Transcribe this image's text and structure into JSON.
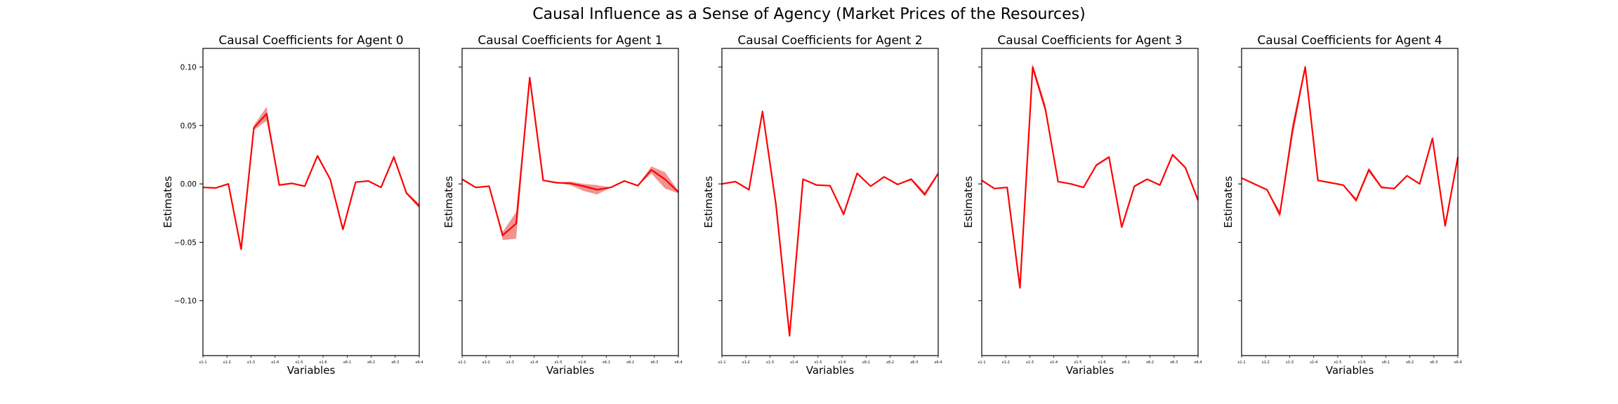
{
  "suptitle": "Causal Influence as a Sense of Agency (Market Prices of the Resources)",
  "colors": {
    "line": "#ff0000",
    "band": "#f08080",
    "axis": "#000000"
  },
  "chart_data": [
    {
      "type": "line",
      "title": "Causal Coefficients for Agent 0",
      "xlabel": "Variables",
      "ylabel": "Estimates",
      "ylim": [
        -0.147,
        0.116
      ],
      "yticks": [
        0.1,
        0.05,
        0.0,
        -0.05,
        -0.1
      ],
      "ytick_labels": [
        "0.10",
        "0.05",
        "0.00",
        "−0.05",
        "−0.10"
      ],
      "x_tick_labels": [
        "x1-1",
        "x1-2",
        "x1-3",
        "x1-4",
        "x1-5",
        "x1-6",
        "x6-1",
        "x6-2",
        "x6-3",
        "x6-4"
      ],
      "series": [
        {
          "values": [
            -0.003,
            -0.0035,
            0.0,
            -0.056,
            0.048,
            0.06,
            -0.001,
            0.0005,
            -0.002,
            0.024,
            0.004,
            -0.039,
            0.0015,
            0.0025,
            -0.003,
            0.023,
            -0.008,
            -0.019
          ],
          "lower": [
            -0.003,
            -0.0035,
            0.0,
            -0.056,
            0.046,
            0.054,
            -0.001,
            0.0005,
            -0.002,
            0.023,
            0.004,
            -0.04,
            0.0015,
            0.0025,
            -0.003,
            0.022,
            -0.009,
            -0.021
          ],
          "upper": [
            -0.003,
            -0.0035,
            0.0,
            -0.054,
            0.05,
            0.066,
            -0.001,
            0.0005,
            -0.002,
            0.025,
            0.004,
            -0.038,
            0.0015,
            0.0025,
            -0.003,
            0.025,
            -0.007,
            -0.017
          ]
        }
      ]
    },
    {
      "type": "line",
      "title": "Causal Coefficients for Agent 1",
      "xlabel": "Variables",
      "ylabel": "Estimates",
      "ylim": [
        -0.147,
        0.116
      ],
      "yticks": [
        0.1,
        0.05,
        0.0,
        -0.05,
        -0.1
      ],
      "ytick_labels": [
        "",
        "",
        "",
        "",
        ""
      ],
      "x_tick_labels": [
        "x1-1",
        "x1-2",
        "x1-3",
        "x1-4",
        "x1-5",
        "x1-6",
        "x6-1",
        "x6-2",
        "x6-3",
        "x6-4"
      ],
      "series": [
        {
          "values": [
            0.004,
            -0.003,
            -0.002,
            -0.044,
            -0.034,
            0.091,
            0.003,
            0.001,
            0.0005,
            -0.002,
            -0.005,
            -0.003,
            0.0025,
            -0.0015,
            0.012,
            0.004,
            -0.007
          ],
          "lower": [
            0.004,
            -0.003,
            -0.002,
            -0.048,
            -0.047,
            0.09,
            0.003,
            0.001,
            -0.001,
            -0.006,
            -0.009,
            -0.003,
            0.0025,
            -0.002,
            0.009,
            -0.004,
            -0.008
          ],
          "upper": [
            0.004,
            -0.003,
            -0.002,
            -0.041,
            -0.024,
            0.092,
            0.003,
            0.001,
            0.002,
            0.0,
            -0.001,
            -0.003,
            0.0025,
            -0.001,
            0.015,
            0.01,
            -0.006
          ]
        }
      ]
    },
    {
      "type": "line",
      "title": "Causal Coefficients for Agent 2",
      "xlabel": "Variables",
      "ylabel": "Estimates",
      "ylim": [
        -0.147,
        0.116
      ],
      "yticks": [
        0.1,
        0.05,
        0.0,
        -0.05,
        -0.1
      ],
      "ytick_labels": [
        "",
        "",
        "",
        "",
        ""
      ],
      "x_tick_labels": [
        "x1-1",
        "x1-2",
        "x1-3",
        "x1-4",
        "x1-5",
        "x1-6",
        "x6-1",
        "x6-2",
        "x6-3",
        "x6-4"
      ],
      "series": [
        {
          "values": [
            0.0,
            0.002,
            -0.005,
            0.062,
            -0.018,
            -0.13,
            0.004,
            -0.001,
            -0.0015,
            -0.026,
            0.009,
            -0.002,
            0.006,
            -0.0005,
            0.004,
            -0.009,
            0.009
          ],
          "lower": [
            0.0,
            0.002,
            -0.005,
            0.06,
            -0.019,
            -0.132,
            0.004,
            -0.001,
            -0.0015,
            -0.028,
            0.008,
            -0.002,
            0.006,
            -0.0005,
            0.003,
            -0.011,
            0.008
          ],
          "upper": [
            0.0,
            0.002,
            -0.005,
            0.064,
            -0.017,
            -0.128,
            0.004,
            -0.001,
            -0.0015,
            -0.024,
            0.01,
            -0.002,
            0.006,
            -0.0005,
            0.005,
            -0.007,
            0.01
          ]
        }
      ]
    },
    {
      "type": "line",
      "title": "Causal Coefficients for Agent 3",
      "xlabel": "Variables",
      "ylabel": "Estimates",
      "ylim": [
        -0.147,
        0.116
      ],
      "yticks": [
        0.1,
        0.05,
        0.0,
        -0.05,
        -0.1
      ],
      "ytick_labels": [
        "",
        "",
        "",
        "",
        ""
      ],
      "x_tick_labels": [
        "x1-1",
        "x1-2",
        "x1-3",
        "x1-4",
        "x1-5",
        "x1-6",
        "x6-1",
        "x6-2",
        "x6-3",
        "x6-4"
      ],
      "series": [
        {
          "values": [
            0.003,
            -0.004,
            -0.003,
            -0.089,
            0.1,
            0.064,
            0.002,
            0.0,
            -0.003,
            0.016,
            0.023,
            -0.037,
            -0.002,
            0.004,
            -0.001,
            0.025,
            0.014,
            -0.014
          ],
          "lower": [
            0.003,
            -0.004,
            -0.003,
            -0.09,
            0.097,
            0.061,
            0.002,
            0.0,
            -0.003,
            0.015,
            0.022,
            -0.038,
            -0.002,
            0.004,
            -0.001,
            0.024,
            0.013,
            -0.016
          ],
          "upper": [
            0.003,
            -0.004,
            -0.003,
            -0.088,
            0.103,
            0.068,
            0.002,
            0.0,
            -0.003,
            0.017,
            0.024,
            -0.036,
            -0.002,
            0.004,
            -0.001,
            0.026,
            0.015,
            -0.012
          ]
        }
      ]
    },
    {
      "type": "line",
      "title": "Causal Coefficients for Agent 4",
      "xlabel": "Variables",
      "ylabel": "Estimates",
      "ylim": [
        -0.147,
        0.116
      ],
      "yticks": [
        0.1,
        0.05,
        0.0,
        -0.05,
        -0.1
      ],
      "ytick_labels": [
        "",
        "",
        "",
        "",
        ""
      ],
      "x_tick_labels": [
        "x1-1",
        "x1-2",
        "x1-3",
        "x1-4",
        "x1-5",
        "x1-6",
        "x6-1",
        "x6-2",
        "x6-3",
        "x6-4"
      ],
      "series": [
        {
          "values": [
            0.005,
            0.0,
            -0.005,
            -0.026,
            0.046,
            0.1,
            0.003,
            0.001,
            -0.001,
            -0.014,
            0.012,
            -0.003,
            -0.004,
            0.007,
            0.0,
            0.039,
            -0.036,
            0.023
          ],
          "lower": [
            0.005,
            0.0,
            -0.005,
            -0.029,
            0.04,
            0.098,
            0.003,
            0.001,
            -0.001,
            -0.016,
            0.01,
            -0.004,
            -0.004,
            0.007,
            0.0,
            0.038,
            -0.037,
            0.023
          ],
          "upper": [
            0.005,
            0.0,
            -0.005,
            -0.023,
            0.052,
            0.102,
            0.003,
            0.001,
            -0.001,
            -0.012,
            0.014,
            -0.002,
            -0.004,
            0.007,
            0.0,
            0.04,
            -0.035,
            0.023
          ]
        }
      ]
    }
  ]
}
